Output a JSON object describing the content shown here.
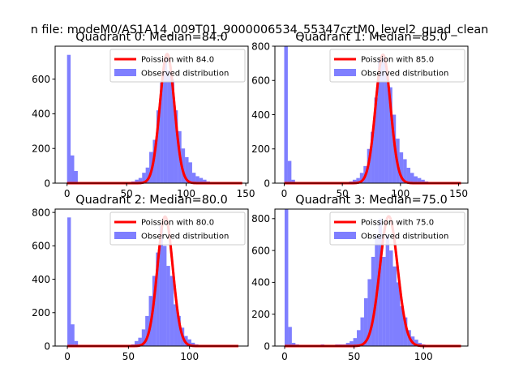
{
  "figure": {
    "suptitle": "n file: modeM0/AS1A14_009T01_9000006534_55347cztM0_level2_quad_clean"
  },
  "colors": {
    "poisson_line": "#ff0000",
    "histogram": "#0000ff",
    "axes": "#000000",
    "legend_border": "#cccccc",
    "background": "#ffffff"
  },
  "chart_data": [
    {
      "type": "bar",
      "title": "Quadrant 0: Median=84.0",
      "xlim": [
        -10,
        152
      ],
      "ylim": [
        0,
        790
      ],
      "xticks": [
        0,
        50,
        100,
        150
      ],
      "yticks": [
        0,
        200,
        400,
        600
      ],
      "bins": {
        "start": 0,
        "width": 3.0
      },
      "hist_values": [
        740,
        160,
        70,
        0,
        0,
        0,
        0,
        0,
        0,
        0,
        0,
        0,
        0,
        0,
        0,
        0,
        0,
        5,
        10,
        20,
        30,
        60,
        90,
        180,
        250,
        420,
        580,
        720,
        650,
        600,
        420,
        300,
        200,
        150,
        120,
        60,
        40,
        30,
        20,
        10,
        5,
        0,
        0,
        0,
        0,
        0,
        0,
        0,
        0
      ],
      "poisson": {
        "label": "Poission with 84.0",
        "mean": 84.0,
        "scale": 6.1,
        "peak": 745,
        "x_range": [
          0,
          147
        ]
      },
      "legend": [
        "Poission with 84.0",
        "Observed distribution"
      ]
    },
    {
      "type": "bar",
      "title": "Quadrant 1: Median=85.0",
      "xlim": [
        -8,
        158
      ],
      "ylim": [
        0,
        800
      ],
      "xticks": [
        0,
        50,
        100,
        150
      ],
      "yticks": [
        0,
        200,
        400,
        600,
        800
      ],
      "bins": {
        "start": 0,
        "width": 3.1
      },
      "hist_values": [
        800,
        130,
        20,
        0,
        0,
        0,
        0,
        0,
        0,
        0,
        0,
        0,
        0,
        0,
        0,
        0,
        0,
        5,
        10,
        20,
        30,
        60,
        100,
        200,
        300,
        500,
        720,
        740,
        660,
        560,
        400,
        260,
        180,
        140,
        90,
        60,
        40,
        30,
        20,
        10,
        5,
        0,
        0,
        0,
        0,
        0,
        0,
        0,
        0
      ],
      "poisson": {
        "label": "Poission with 85.0",
        "mean": 85.0,
        "scale": 6.4,
        "peak": 750,
        "x_range": [
          0,
          152
        ]
      },
      "legend": [
        "Poission with 85.0",
        "Observed distribution"
      ]
    },
    {
      "type": "bar",
      "title": "Quadrant 2: Median=80.0",
      "xlim": [
        -10,
        148
      ],
      "ylim": [
        0,
        820
      ],
      "xticks": [
        0,
        50,
        100
      ],
      "yticks": [
        0,
        200,
        400,
        600,
        800
      ],
      "bins": {
        "start": 0,
        "width": 2.9
      },
      "hist_values": [
        770,
        130,
        30,
        0,
        0,
        0,
        0,
        0,
        0,
        0,
        0,
        0,
        0,
        0,
        0,
        0,
        0,
        5,
        10,
        30,
        50,
        100,
        180,
        300,
        420,
        560,
        720,
        600,
        480,
        420,
        250,
        180,
        110,
        60,
        40,
        20,
        10,
        5,
        0,
        0,
        0,
        0,
        0,
        0,
        0,
        0,
        0,
        0
      ],
      "poisson": {
        "label": "Poission with 80.0",
        "mean": 80.0,
        "scale": 6.3,
        "peak": 775,
        "x_range": [
          0,
          140
        ]
      },
      "legend": [
        "Poission with 80.0",
        "Observed distribution"
      ]
    },
    {
      "type": "bar",
      "title": "Quadrant 3: Median=75.0",
      "xlim": [
        -7,
        132
      ],
      "ylim": [
        0,
        860
      ],
      "xticks": [
        0,
        50,
        100
      ],
      "yticks": [
        0,
        200,
        400,
        600,
        800
      ],
      "bins": {
        "start": 0,
        "width": 2.6
      },
      "hist_values": [
        860,
        120,
        20,
        10,
        0,
        0,
        0,
        0,
        5,
        5,
        10,
        5,
        5,
        5,
        10,
        10,
        10,
        20,
        30,
        50,
        100,
        180,
        300,
        420,
        560,
        700,
        800,
        560,
        700,
        600,
        500,
        400,
        250,
        180,
        100,
        60,
        40,
        20,
        10,
        5,
        0,
        0,
        0,
        0,
        0,
        0,
        0,
        0
      ],
      "poisson": {
        "label": "Poission with 75.0",
        "mean": 75.0,
        "scale": 6.4,
        "peak": 815,
        "x_range": [
          0,
          127
        ]
      },
      "legend": [
        "Poission with 75.0",
        "Observed distribution"
      ]
    }
  ]
}
